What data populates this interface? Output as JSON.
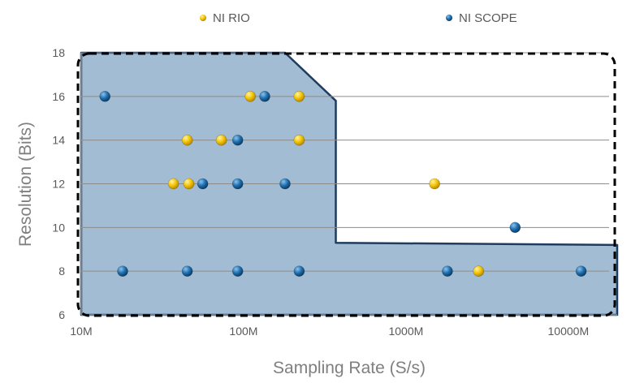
{
  "chart_data": {
    "type": "scatter",
    "title": "",
    "xlabel": "Sampling Rate (S/s)",
    "ylabel": "Resolution (Bits)",
    "x_scale": "log",
    "xlim": [
      10,
      20000
    ],
    "ylim": [
      6,
      18
    ],
    "x_ticks": [
      {
        "value": 10,
        "label": "10M"
      },
      {
        "value": 100,
        "label": "100M"
      },
      {
        "value": 1000,
        "label": "1000M"
      },
      {
        "value": 10000,
        "label": "10000M"
      }
    ],
    "y_ticks": [
      6,
      8,
      10,
      12,
      14,
      16,
      18
    ],
    "grid": "horizontal",
    "legend_position": "top",
    "region": {
      "color": "#a2bcd3",
      "border": "#1f3c5e",
      "points": [
        [
          10,
          18
        ],
        [
          180,
          18
        ],
        [
          370,
          15.8
        ],
        [
          370,
          9.3
        ],
        [
          20000,
          9.2
        ],
        [
          20000,
          6
        ],
        [
          10,
          6
        ]
      ]
    },
    "series": [
      {
        "name": "NI RIO",
        "color": "#f5c400",
        "points": [
          [
            110,
            16
          ],
          [
            220,
            16
          ],
          [
            45,
            14
          ],
          [
            73,
            14
          ],
          [
            220,
            14
          ],
          [
            37,
            12
          ],
          [
            46,
            12
          ],
          [
            1500,
            12
          ],
          [
            2800,
            8
          ]
        ]
      },
      {
        "name": "NI SCOPE",
        "color": "#1f6fb0",
        "points": [
          [
            14,
            16
          ],
          [
            135,
            16
          ],
          [
            92,
            14
          ],
          [
            56,
            12
          ],
          [
            92,
            12
          ],
          [
            180,
            12
          ],
          [
            4700,
            10
          ],
          [
            18,
            8
          ],
          [
            45,
            8
          ],
          [
            92,
            8
          ],
          [
            220,
            8
          ],
          [
            1800,
            8
          ],
          [
            12000,
            8
          ]
        ]
      }
    ]
  }
}
